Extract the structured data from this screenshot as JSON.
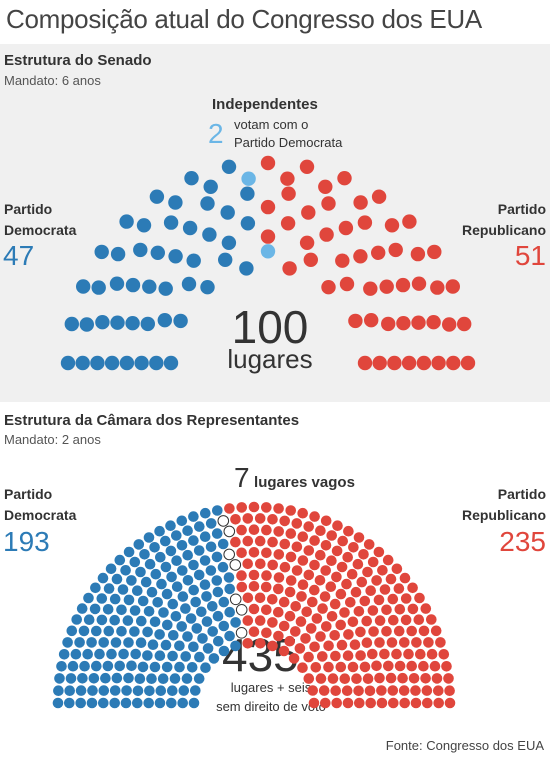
{
  "title": "Composição atual do Congresso dos EUA",
  "colors": {
    "democrat": "#2c7bb6",
    "republican": "#e0463c",
    "independent": "#6bb6e6",
    "vacant": "#ffffff"
  },
  "senate": {
    "heading": "Estrutura do Senado",
    "term": "Mandato: 6 anos",
    "left_party": [
      "Partido",
      "Democrata"
    ],
    "right_party": [
      "Partido",
      "Republicano"
    ],
    "independents_title": "Independentes",
    "independents_count": "2",
    "independents_note": [
      "votam com o",
      "Partido Democrata"
    ],
    "total": "100",
    "total_label": "lugares"
  },
  "house": {
    "heading": "Estrutura da Câmara dos Representantes",
    "term": "Mandato: 2 anos",
    "left_party": [
      "Partido",
      "Democrata"
    ],
    "right_party": [
      "Partido",
      "Republicano"
    ],
    "vacant_count": "7",
    "vacant_label": "lugares vagos",
    "total": "435",
    "total_label": [
      "lugares + seis",
      "sem direito de voto"
    ]
  },
  "source": "Fonte:  Congresso dos EUA",
  "chart_data": [
    {
      "type": "parliament",
      "series": [
        {
          "name": "Partido Democrata",
          "values": [
            47
          ]
        },
        {
          "name": "Independentes",
          "values": [
            2
          ]
        },
        {
          "name": "Partido Republicano",
          "values": [
            51
          ]
        }
      ],
      "total": 100
    },
    {
      "type": "parliament",
      "series": [
        {
          "name": "Partido Democrata",
          "values": [
            193
          ]
        },
        {
          "name": "lugares vagos",
          "values": [
            7
          ]
        },
        {
          "name": "Partido Republicano",
          "values": [
            235
          ]
        }
      ],
      "total": 435
    }
  ]
}
